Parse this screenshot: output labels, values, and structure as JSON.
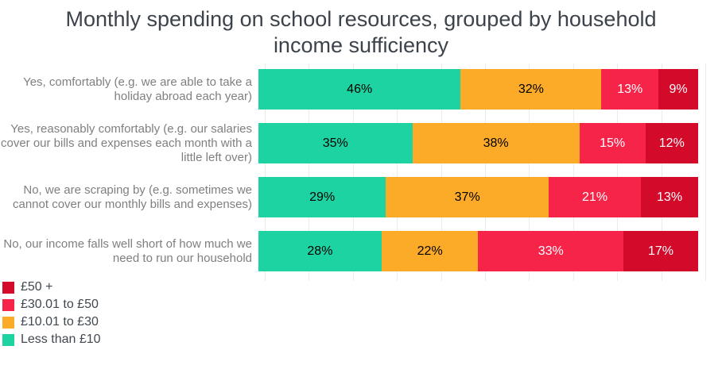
{
  "title": "Monthly spending on school resources, grouped by household income sufficiency",
  "chart_data": {
    "type": "bar",
    "variant": "stacked-horizontal-100-percent",
    "title": "Monthly spending on school resources, grouped by household income sufficiency",
    "xlabel": "",
    "ylabel": "",
    "xlim": [
      0,
      100
    ],
    "value_suffix": "%",
    "gridlines": {
      "axis": "x",
      "interval_percent": 10,
      "color": "#ebebeb",
      "visible": true
    },
    "categories": [
      "Yes, comfortably (e.g. we are able to take a holiday abroad each year)",
      "Yes, reasonably comfortably (e.g. our salaries cover our bills and expenses each month with a little left over)",
      "No, we are scraping by (e.g. sometimes we cannot cover our monthly bills and expenses)",
      "No, our income falls well short of how much we need to run our household"
    ],
    "series": [
      {
        "name": "Less than £10",
        "color": "#1ed3a2",
        "text_color": "#000000",
        "values": [
          46,
          35,
          29,
          28
        ]
      },
      {
        "name": "£10.01 to £30",
        "color": "#fcab28",
        "text_color": "#000000",
        "values": [
          32,
          38,
          37,
          22
        ]
      },
      {
        "name": "£30.01 to £50",
        "color": "#f62449",
        "text_color": "#ffffff",
        "values": [
          13,
          15,
          21,
          33
        ]
      },
      {
        "name": "£50 +",
        "color": "#d40a2b",
        "text_color": "#ffffff",
        "values": [
          9,
          12,
          13,
          17
        ]
      }
    ],
    "legend": {
      "position": "bottom-left",
      "items": [
        {
          "label": "£50 +",
          "color": "#d40a2b"
        },
        {
          "label": "£30.01 to £50",
          "color": "#f62449"
        },
        {
          "label": "£10.01 to £30",
          "color": "#fcab28"
        },
        {
          "label": "Less than £10",
          "color": "#1ed3a2"
        }
      ]
    }
  }
}
